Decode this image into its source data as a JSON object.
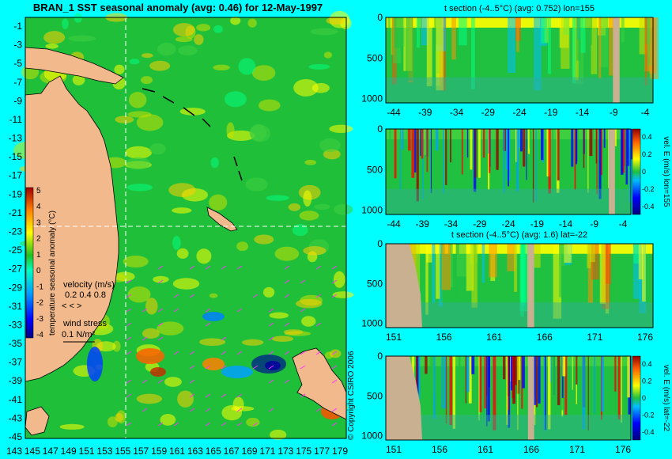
{
  "colors": {
    "background": "#00ffff",
    "land": "#f2b98c",
    "section_land": "#c8b090",
    "coast": "#000000",
    "wind": "#ff33ff",
    "crosshair": "#ffffff"
  },
  "map": {
    "title": "BRAN_1 SST seasonal anomaly (avg: 0.46) for 12-May-1997",
    "ylabels": [
      "-1",
      "-3",
      "-5",
      "-7",
      "-9",
      "-11",
      "-13",
      "-15",
      "-17",
      "-19",
      "-21",
      "-23",
      "-25",
      "-27",
      "-29",
      "-31",
      "-33",
      "-35",
      "-37",
      "-39",
      "-41",
      "-43",
      "-45"
    ],
    "xlabels": [
      "143",
      "145",
      "147",
      "149",
      "151",
      "153",
      "155",
      "157",
      "159",
      "161",
      "163",
      "165",
      "167",
      "169",
      "171",
      "173",
      "175",
      "177",
      "179"
    ],
    "colorbar": {
      "label": "temperature seasonal anomaly (°C)",
      "ticks": [
        "5",
        "4",
        "3",
        "2",
        "1",
        "0",
        "-1",
        "-2",
        "-3",
        "-4"
      ]
    },
    "velocity_label": "velocity (m/s)",
    "velocity_scale": "0.2 0.4 0.8",
    "wind_label": "wind stress",
    "wind_scale": "0.1 N/m²",
    "copyright": "© Copyright CSIRO 2006"
  },
  "chart_data": [
    {
      "type": "heatmap",
      "panel": "sst-map",
      "title": "BRAN_1 SST seasonal anomaly (avg: 0.46) for 12-May-1997",
      "xlim": [
        142,
        180
      ],
      "ylim": [
        -45,
        0
      ],
      "crosshair": {
        "lon": 155,
        "lat": -22
      },
      "value_range": [
        -4,
        5
      ],
      "mean": 0.46
    },
    {
      "type": "heatmap",
      "panel": "t-section-lon155",
      "title": "t section (-4..5°C) (avg: 0.752) lon=155",
      "xlabels": [
        "-44",
        "-39",
        "-34",
        "-29",
        "-24",
        "-19",
        "-14",
        "-9",
        "-4"
      ],
      "ylabels": [
        "0",
        "500",
        "1000"
      ],
      "xlim": [
        -45,
        0
      ],
      "ylim": [
        0,
        1050
      ],
      "mean": 0.752
    },
    {
      "type": "heatmap",
      "panel": "vel-section-lon155",
      "title": "",
      "xlabels": [
        "-44",
        "-39",
        "-34",
        "-29",
        "-24",
        "-19",
        "-14",
        "-9",
        "-4"
      ],
      "ylabels": [
        "0",
        "500",
        "1000"
      ],
      "xlim": [
        -45,
        0
      ],
      "ylim": [
        0,
        1050
      ],
      "colorbar_label": "vel. E (m/s) lon=155",
      "colorbar_ticks": [
        "0.4",
        "0.2",
        "0",
        "-0.2",
        "-0.4"
      ]
    },
    {
      "type": "heatmap",
      "panel": "t-section-lat-22",
      "title": "t section (-4..5°C) (avg: 1.6) lat=-22",
      "xlabels": [
        "151",
        "156",
        "161",
        "166",
        "171",
        "176"
      ],
      "ylabels": [
        "0",
        "500",
        "1000"
      ],
      "xlim": [
        150,
        180
      ],
      "ylim": [
        0,
        1050
      ],
      "mean": 1.6
    },
    {
      "type": "heatmap",
      "panel": "vel-section-lat-22",
      "title": "",
      "xlabels": [
        "151",
        "156",
        "161",
        "166",
        "171",
        "176"
      ],
      "ylabels": [
        "0",
        "500",
        "1000"
      ],
      "xlim": [
        150,
        180
      ],
      "ylim": [
        0,
        1050
      ],
      "colorbar_label": "vel. E (m/s) lat=-22",
      "colorbar_ticks": [
        "0.4",
        "0.2",
        "0",
        "-0.2",
        "-0.4"
      ]
    }
  ]
}
